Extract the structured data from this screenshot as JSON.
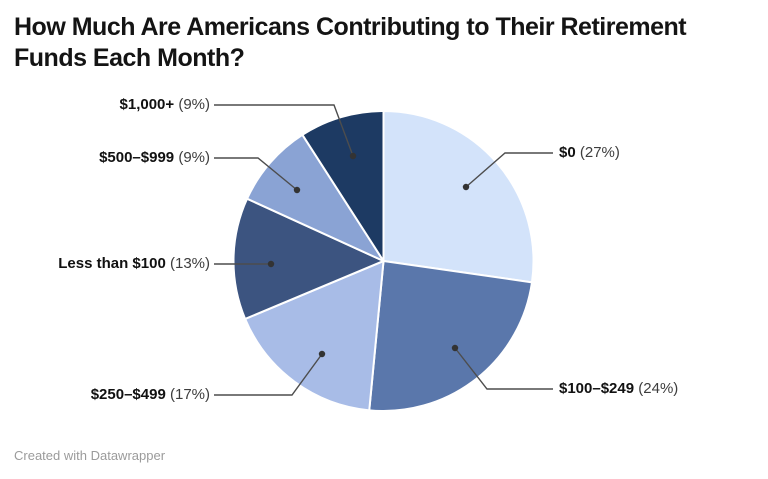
{
  "title": {
    "full": "How Much Are Americans Contributing to Their Retirement Funds Each Month?",
    "lines": [
      "How Much Are Americans Contributing to Their Retirement",
      "Funds Each Month?"
    ]
  },
  "footer": {
    "credit": "Created with Datawrapper"
  },
  "chart_data": {
    "type": "pie",
    "title": "How Much Are Americans Contributing to Their Retirement Funds Each Month?",
    "unit": "percent",
    "direction": "clockwise",
    "start_angle_deg": 0,
    "legend_position": "callout-labels",
    "slice_border_color": "#ffffff",
    "leader_line_color": "#4d4d4d",
    "leader_dot_color": "#333333",
    "slices": [
      {
        "label": "$0",
        "value": 27,
        "pct_text": "(27%)",
        "color": "#d3e3fa"
      },
      {
        "label": "$100–$249",
        "value": 24,
        "pct_text": "(24%)",
        "color": "#5a77ab"
      },
      {
        "label": "$250–$499",
        "value": 17,
        "pct_text": "(17%)",
        "color": "#a8bce7"
      },
      {
        "label": "Less than $100",
        "value": 13,
        "pct_text": "(13%)",
        "color": "#3c5480"
      },
      {
        "label": "$500–$999",
        "value": 9,
        "pct_text": "(9%)",
        "color": "#8aa3d4"
      },
      {
        "label": "$1,000+",
        "value": 9,
        "pct_text": "(9%)",
        "color": "#1d3a63"
      }
    ]
  }
}
